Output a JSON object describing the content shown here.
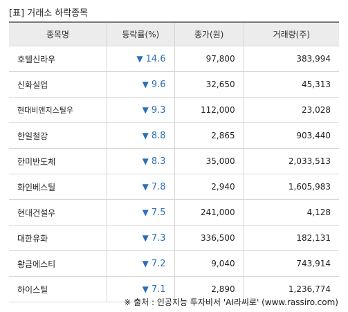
{
  "title": "[표] 거래소 하락종목",
  "headers": {
    "name": "종목명",
    "rate": "등락률(%)",
    "price": "종가(원)",
    "volume": "거래량(주)"
  },
  "down_arrow": "▼",
  "rows": [
    {
      "name": "호텔신라우",
      "rate": "14.6",
      "price": "97,800",
      "volume": "383,994"
    },
    {
      "name": "신화실업",
      "rate": "9.6",
      "price": "32,650",
      "volume": "45,313"
    },
    {
      "name": "현대비앤지스틸우",
      "rate": "9.3",
      "price": "112,000",
      "volume": "23,028"
    },
    {
      "name": "한일철강",
      "rate": "8.8",
      "price": "2,865",
      "volume": "903,440"
    },
    {
      "name": "한미반도체",
      "rate": "8.3",
      "price": "35,000",
      "volume": "2,033,513"
    },
    {
      "name": "화인베스틸",
      "rate": "7.8",
      "price": "2,940",
      "volume": "1,605,983"
    },
    {
      "name": "현대건설우",
      "rate": "7.5",
      "price": "241,000",
      "volume": "4,128"
    },
    {
      "name": "대한유화",
      "rate": "7.3",
      "price": "336,500",
      "volume": "182,131"
    },
    {
      "name": "황금에스티",
      "rate": "7.2",
      "price": "9,040",
      "volume": "743,914"
    },
    {
      "name": "하이스틸",
      "rate": "7.1",
      "price": "2,890",
      "volume": "1,236,774"
    }
  ],
  "source": "※ 출처 : 인공지능 투자비서 'AI라씨로' (www.rassiro.com)",
  "colors": {
    "accent": "#2c6fb5",
    "header_bg": "#ececec"
  }
}
